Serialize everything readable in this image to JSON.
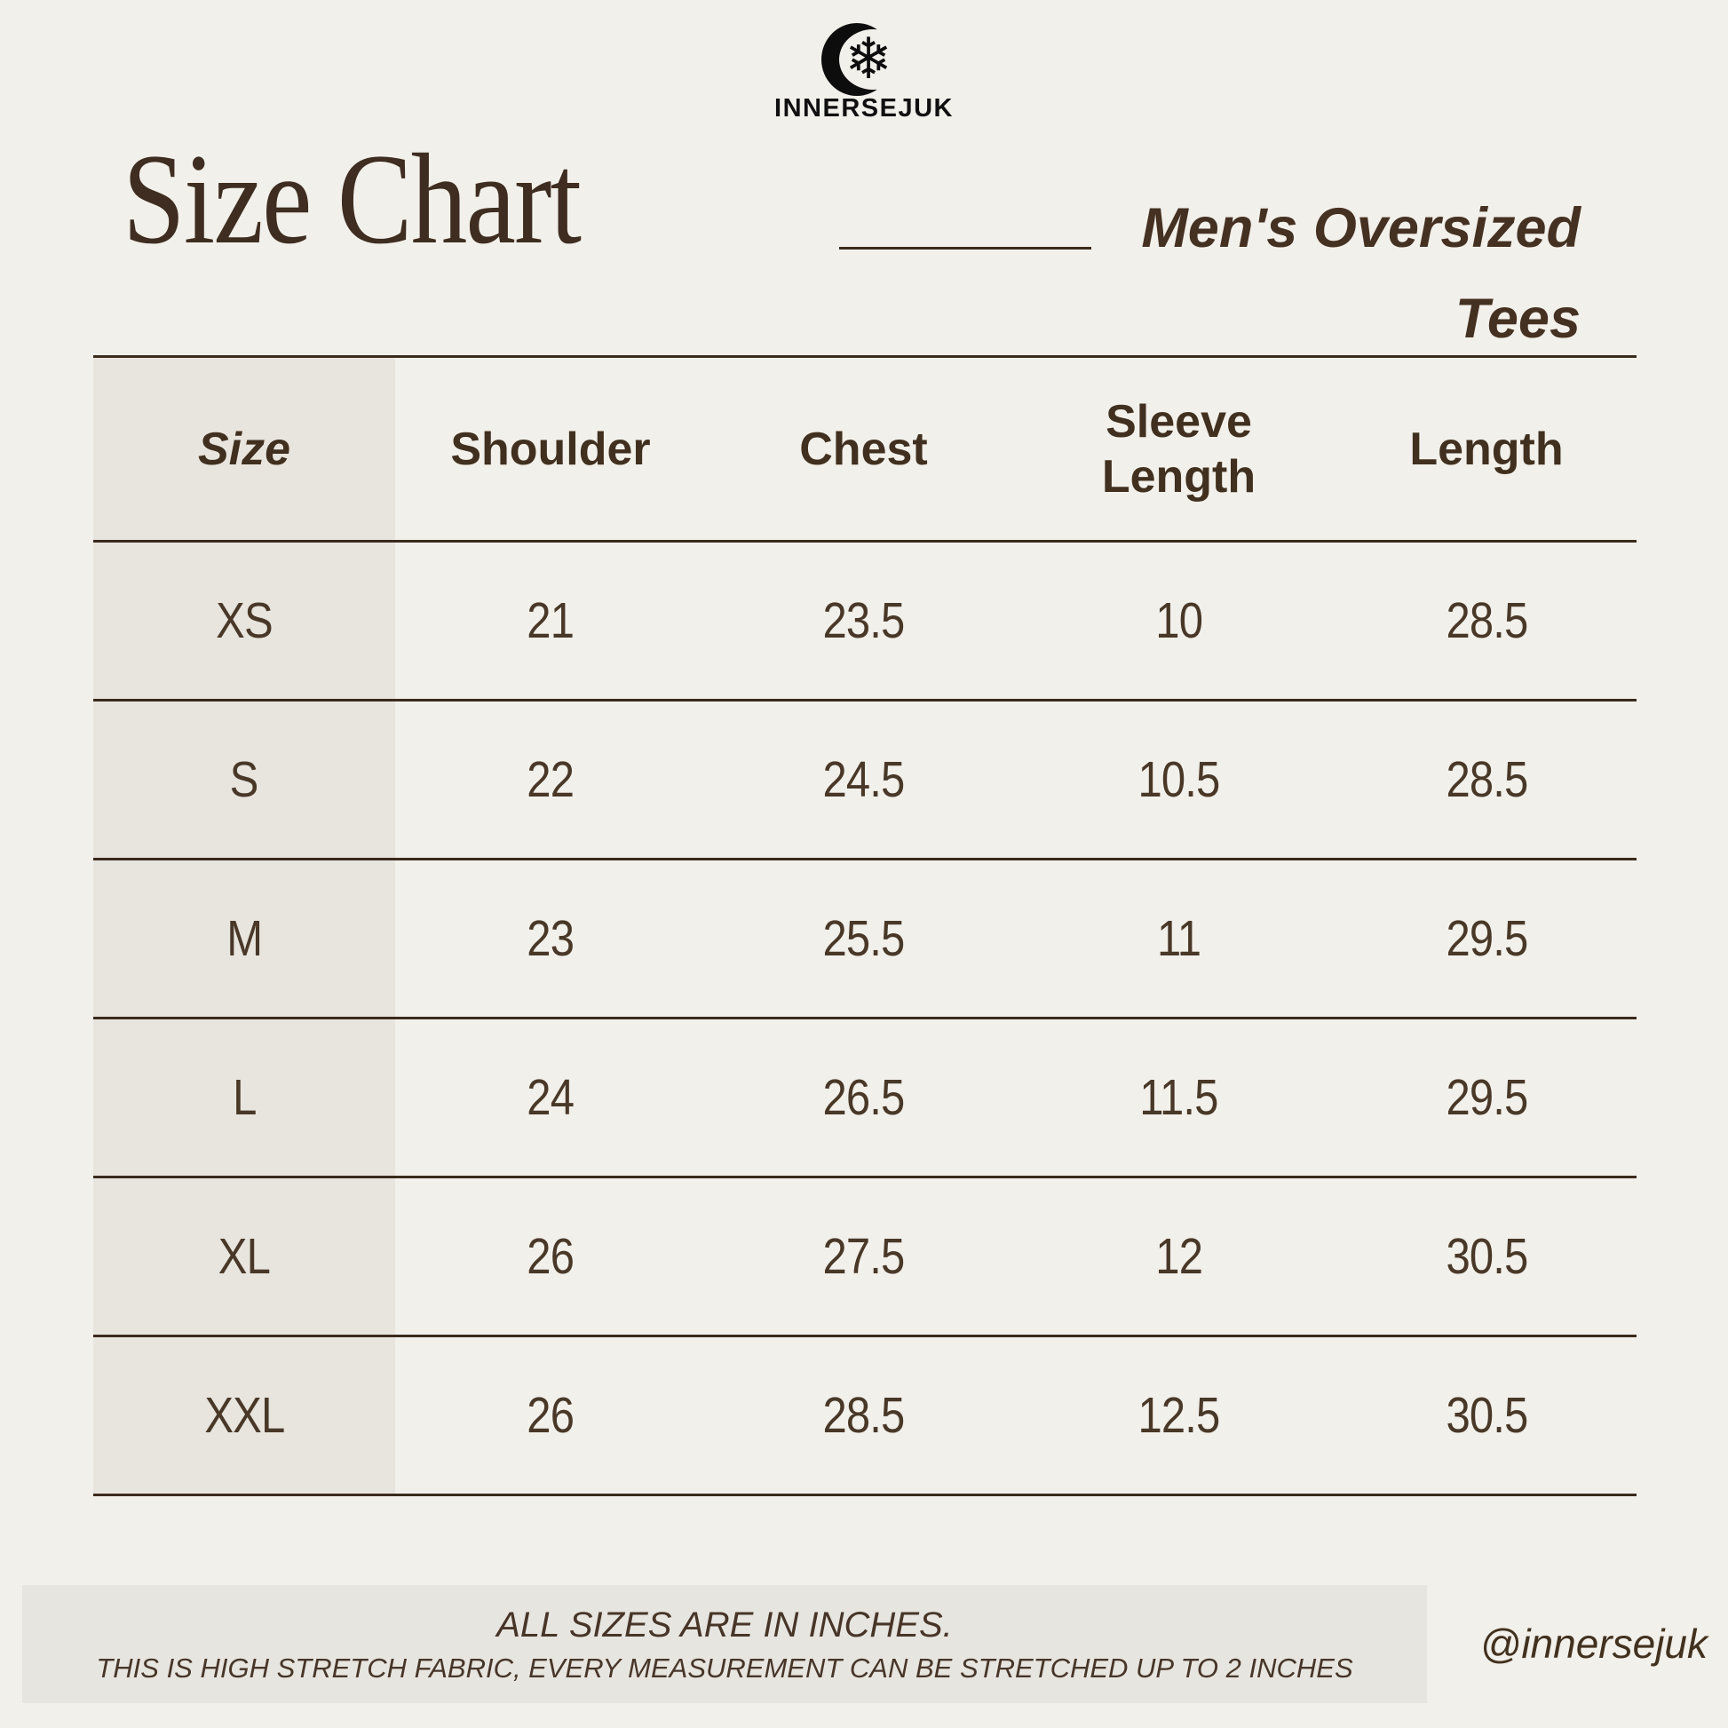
{
  "brand": {
    "name": "INNERSEJUK",
    "logo_icon": "crescent-snowflake-icon",
    "snowflake_glyph": "❄"
  },
  "header": {
    "title": "Size Chart",
    "product_lines": [
      "Men's Oversized",
      "Tees"
    ]
  },
  "size_table": {
    "headers": [
      "Size",
      "Shoulder",
      "Chest",
      "Sleeve Length",
      "Length"
    ],
    "rows": [
      [
        "XS",
        "21",
        "23.5",
        "10",
        "28.5"
      ],
      [
        "S",
        "22",
        "24.5",
        "10.5",
        "28.5"
      ],
      [
        "M",
        "23",
        "25.5",
        "11",
        "29.5"
      ],
      [
        "L",
        "24",
        "26.5",
        "11.5",
        "29.5"
      ],
      [
        "XL",
        "26",
        "27.5",
        "12",
        "30.5"
      ],
      [
        "XXL",
        "26",
        "28.5",
        "12.5",
        "30.5"
      ]
    ]
  },
  "footer": {
    "note_primary": "ALL SIZES ARE IN INCHES.",
    "note_secondary": "THIS IS HIGH STRETCH FABRIC, EVERY MEASUREMENT CAN BE STRETCHED UP TO 2 INCHES",
    "social_handle": "@innersejuk"
  },
  "colors": {
    "background": "#f2f0ea",
    "shaded_panel": "#e8e5de",
    "footer_panel": "#e7e5df",
    "ink_brown": "#44331f",
    "line_brown": "#3b2b1d",
    "logo_black": "#0d0d0d"
  }
}
